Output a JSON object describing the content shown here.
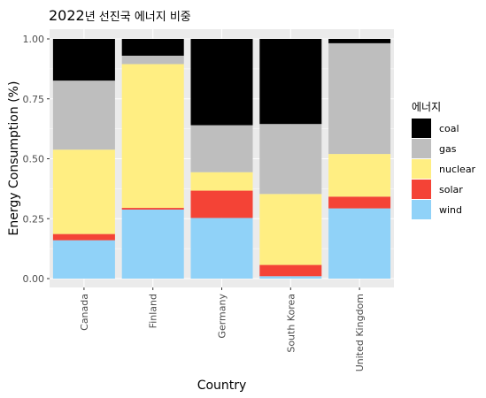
{
  "chart_data": {
    "type": "bar",
    "stacked": true,
    "title_year": "2022",
    "title_rest": "년 선진국 에너지 비중",
    "xlabel": "Country",
    "ylabel": "Energy Consumption (%)",
    "ylim": [
      0,
      1
    ],
    "yticks": [
      "0.00",
      "0.25",
      "0.50",
      "0.75",
      "1.00"
    ],
    "ytick_values": [
      0,
      0.25,
      0.5,
      0.75,
      1.0
    ],
    "grid": true,
    "legend_position": "right",
    "legend_title": "에너지",
    "categories": [
      "Canada",
      "Finland",
      "Germany",
      "South Korea",
      "United Kingdom"
    ],
    "series": [
      {
        "name": "wind",
        "color": "#90D2F8",
        "values": [
          0.16,
          0.288,
          0.253,
          0.01,
          0.293
        ]
      },
      {
        "name": "solar",
        "color": "#F44336",
        "values": [
          0.026,
          0.007,
          0.114,
          0.047,
          0.049
        ]
      },
      {
        "name": "nuclear",
        "color": "#FFEE82",
        "values": [
          0.352,
          0.6,
          0.077,
          0.296,
          0.178
        ]
      },
      {
        "name": "gas",
        "color": "#BEBEBE",
        "values": [
          0.288,
          0.035,
          0.196,
          0.292,
          0.462
        ]
      },
      {
        "name": "coal",
        "color": "#000000",
        "values": [
          0.174,
          0.07,
          0.36,
          0.355,
          0.018
        ]
      }
    ],
    "legend_order": [
      "coal",
      "gas",
      "nuclear",
      "solar",
      "wind"
    ],
    "panel_background": "#EBEBEB",
    "grid_color": "#FFFFFF"
  }
}
